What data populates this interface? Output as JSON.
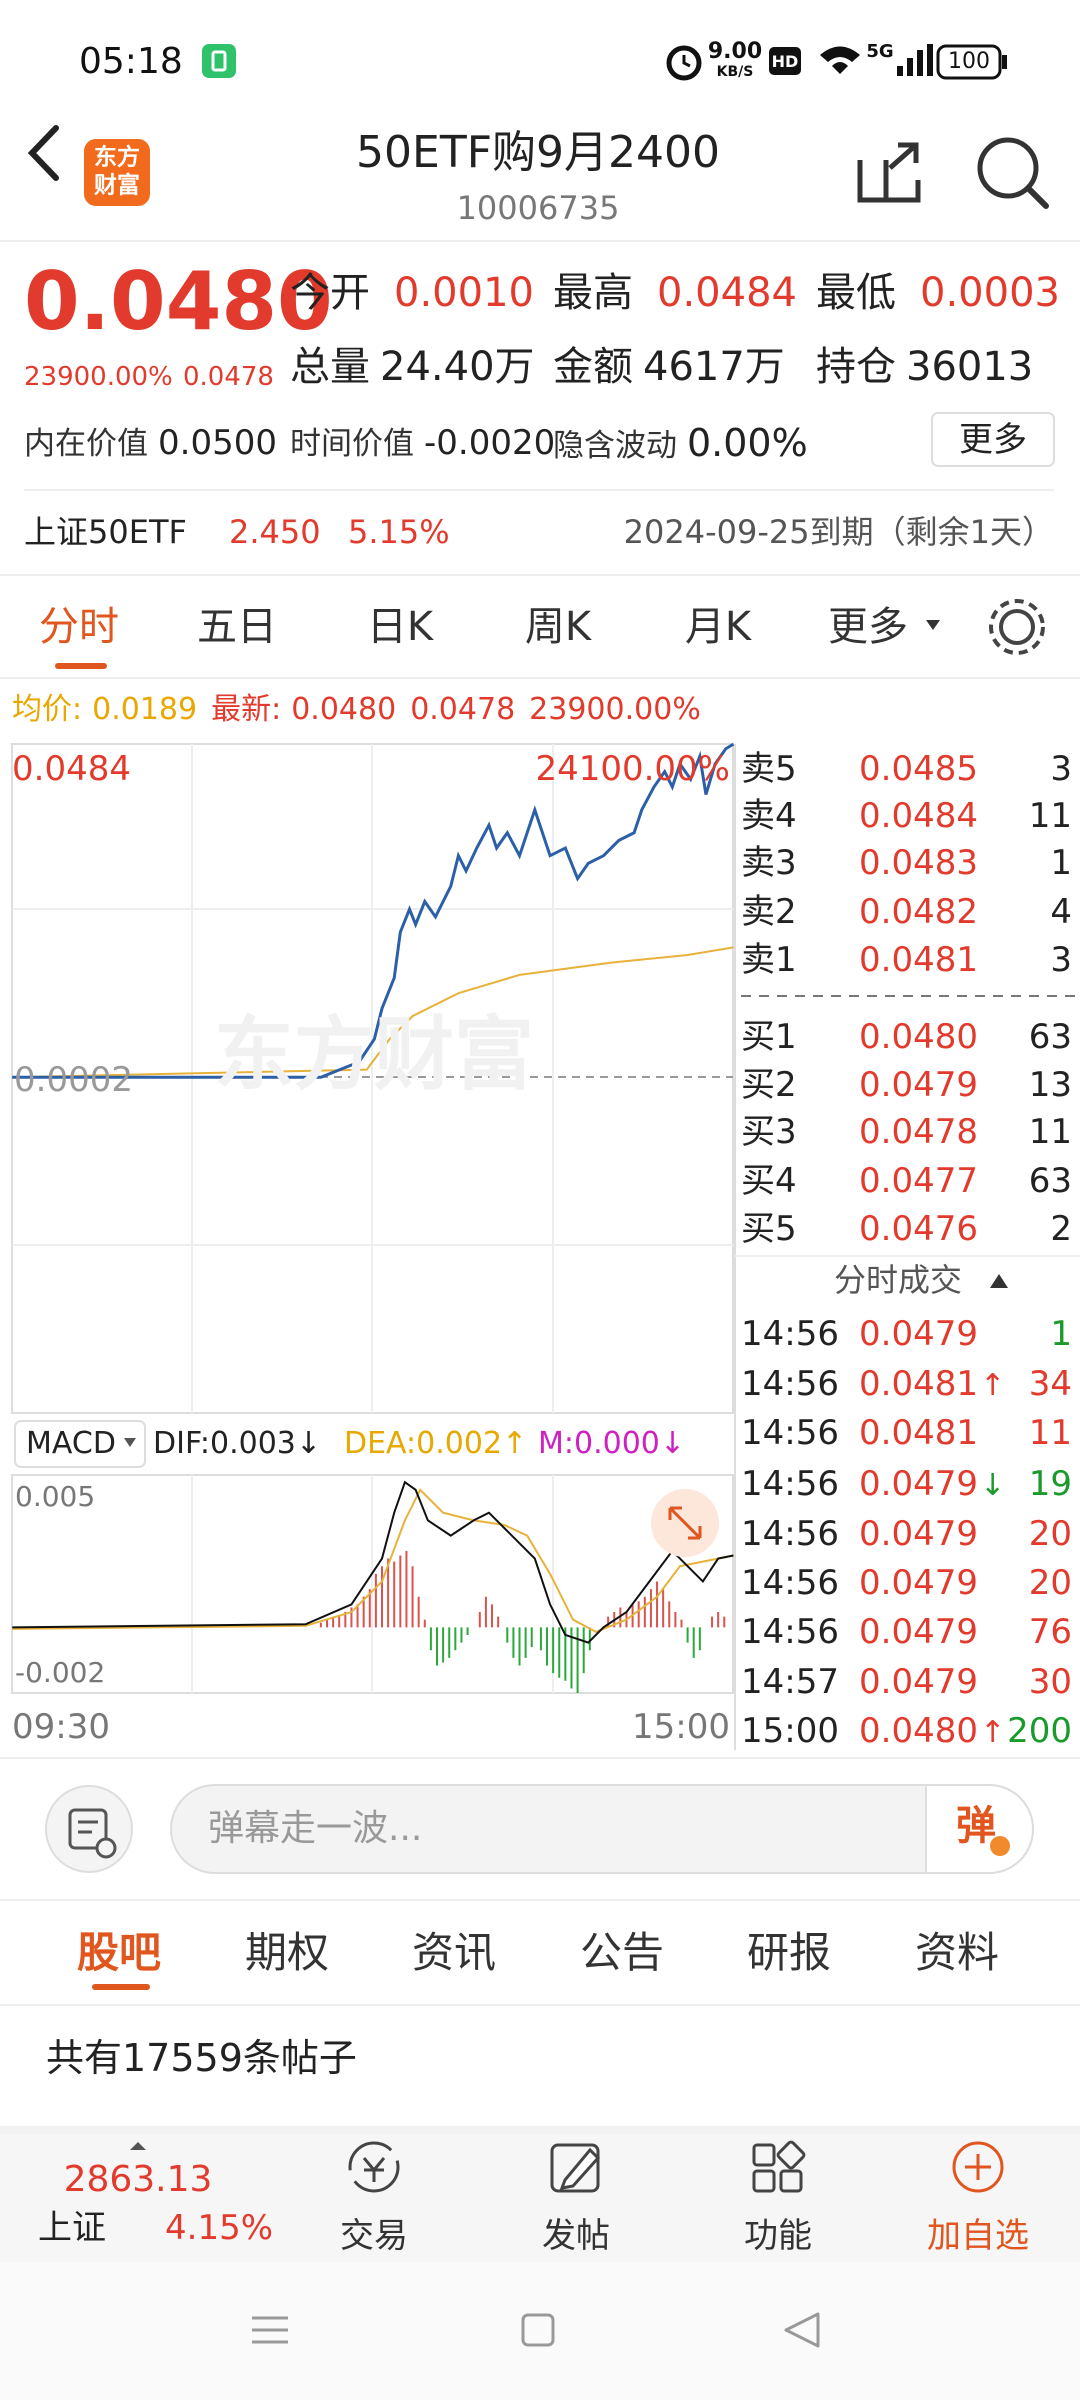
{
  "status": {
    "time": "05:18",
    "speed": "9.00",
    "speed_unit": "KB/S",
    "hd": "HD",
    "network": "5G",
    "battery": "100"
  },
  "header": {
    "logo": [
      "东方",
      "财富"
    ],
    "title": "50ETF购9月2400",
    "code": "10006735"
  },
  "quote": {
    "price": "0.0480",
    "change_pct": "23900.00%",
    "change": "0.0478",
    "stats": [
      [
        {
          "label": "今开",
          "value": "0.0010"
        },
        {
          "label": "最高",
          "value": "0.0484"
        },
        {
          "label": "最低",
          "value": "0.0003"
        }
      ],
      [
        {
          "label": "总量",
          "value": "24.40万"
        },
        {
          "label": "金额",
          "value": "4617万"
        },
        {
          "label": "持仓",
          "value": "36013"
        }
      ],
      [
        {
          "label": "内在价值",
          "value": "0.0500"
        },
        {
          "label": "时间价值",
          "value": "-0.0020"
        },
        {
          "label": "隐含波动",
          "value": "0.00%"
        }
      ]
    ],
    "more": "更多"
  },
  "underlying": {
    "name": "上证50ETF",
    "price": "2.450",
    "pct": "5.15%",
    "expiry": "2024-09-25到期（剩余1天）"
  },
  "chart_tabs": [
    "分时",
    "五日",
    "日K",
    "周K",
    "月K",
    "更多"
  ],
  "legend": {
    "avg_label": "均价:",
    "avg": "0.0189",
    "latest_label": "最新:",
    "latest": "0.0480",
    "change": "0.0478",
    "pct": "23900.00%"
  },
  "chart": {
    "high": "0.0484",
    "high_pct": "24100.00%",
    "base": "0.0002",
    "watermark": "东方财富"
  },
  "macd": {
    "name": "MACD",
    "dif": "DIF:0.003↓",
    "dea": "DEA:0.002↑",
    "m": "M:0.000↓",
    "ymax": "0.005",
    "ymin": "-0.002",
    "start": "09:30",
    "end": "15:00"
  },
  "order_book": {
    "asks": [
      {
        "label": "卖5",
        "price": "0.0485",
        "volume": "3"
      },
      {
        "label": "卖4",
        "price": "0.0484",
        "volume": "11"
      },
      {
        "label": "卖3",
        "price": "0.0483",
        "volume": "1"
      },
      {
        "label": "卖2",
        "price": "0.0482",
        "volume": "4"
      },
      {
        "label": "卖1",
        "price": "0.0481",
        "volume": "3"
      }
    ],
    "bids": [
      {
        "label": "买1",
        "price": "0.0480",
        "volume": "63"
      },
      {
        "label": "买2",
        "price": "0.0479",
        "volume": "13"
      },
      {
        "label": "买3",
        "price": "0.0478",
        "volume": "11"
      },
      {
        "label": "买4",
        "price": "0.0477",
        "volume": "63"
      },
      {
        "label": "买5",
        "price": "0.0476",
        "volume": "2"
      }
    ],
    "trades_title": "分时成交",
    "trades": [
      {
        "time": "14:56",
        "price": "0.0479",
        "volume": "1",
        "color": "#1a9a2a"
      },
      {
        "time": "14:56",
        "price": "0.0481",
        "arrow": {
          "text": "↑",
          "color": "#e23a2c"
        },
        "volume": "34",
        "color": "#e23a2c"
      },
      {
        "time": "14:56",
        "price": "0.0481",
        "volume": "11",
        "color": "#e23a2c"
      },
      {
        "time": "14:56",
        "price": "0.0479",
        "arrow": {
          "text": "↓",
          "color": "#1a9a2a"
        },
        "volume": "19",
        "color": "#1a9a2a"
      },
      {
        "time": "14:56",
        "price": "0.0479",
        "volume": "20",
        "color": "#e23a2c"
      },
      {
        "time": "14:56",
        "price": "0.0479",
        "volume": "20",
        "color": "#e23a2c"
      },
      {
        "time": "14:56",
        "price": "0.0479",
        "volume": "76",
        "color": "#e23a2c"
      },
      {
        "time": "14:57",
        "price": "0.0479",
        "volume": "30",
        "color": "#e23a2c"
      },
      {
        "time": "15:00",
        "price": "0.0480",
        "arrow": {
          "text": "↑",
          "color": "#e23a2c"
        },
        "volume": "200",
        "color": "#1a9a2a"
      }
    ]
  },
  "comment": {
    "placeholder": "弹幕走一波...",
    "button": "弹"
  },
  "section_tabs": [
    "股吧",
    "期权",
    "资讯",
    "公告",
    "研报",
    "资料"
  ],
  "post_count": "共有17559条帖子",
  "bottom": {
    "index_value": "2863.13",
    "index_name": "上证",
    "index_pct": "4.15%",
    "items": [
      "交易",
      "发帖",
      "功能",
      "加自选"
    ]
  }
}
